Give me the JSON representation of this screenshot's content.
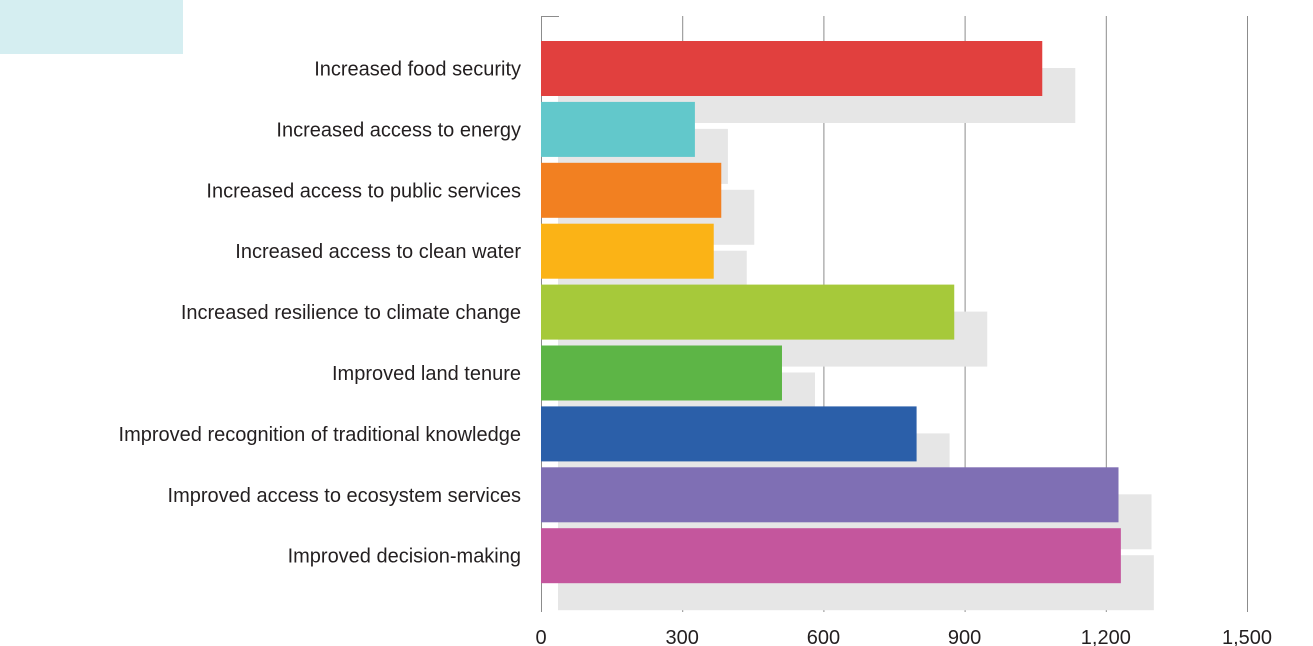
{
  "colors": {
    "background": "#ffffff",
    "corner_block": "#d5eef1",
    "gridline": "#8c8c8c",
    "shadow": "#e6e6e6",
    "text": "#231f20"
  },
  "chart_data": {
    "type": "bar",
    "orientation": "horizontal",
    "title": "",
    "xlabel": "",
    "ylabel": "",
    "xlim": [
      0,
      1500
    ],
    "grid": true,
    "legend": "none",
    "x_ticks": [
      0,
      300,
      600,
      900,
      1200,
      1500
    ],
    "x_tick_labels": [
      "0",
      "300",
      "600",
      "900",
      "1,200",
      "1,500"
    ],
    "categories": [
      "Increased food security",
      "Increased access to energy",
      "Increased access to public services",
      "Increased access to clean water",
      "Increased resilience to climate change",
      "Improved land tenure",
      "Improved recognition of traditional knowledge",
      "Improved access to ecosystem services",
      "Improved decision-making"
    ],
    "values": [
      1065,
      327,
      383,
      367,
      878,
      512,
      798,
      1227,
      1232
    ],
    "bar_colors": [
      "#e1403e",
      "#62c8cb",
      "#f28021",
      "#fbb316",
      "#a6c93a",
      "#5db546",
      "#2b5fa9",
      "#7f6fb4",
      "#c4569d"
    ]
  }
}
